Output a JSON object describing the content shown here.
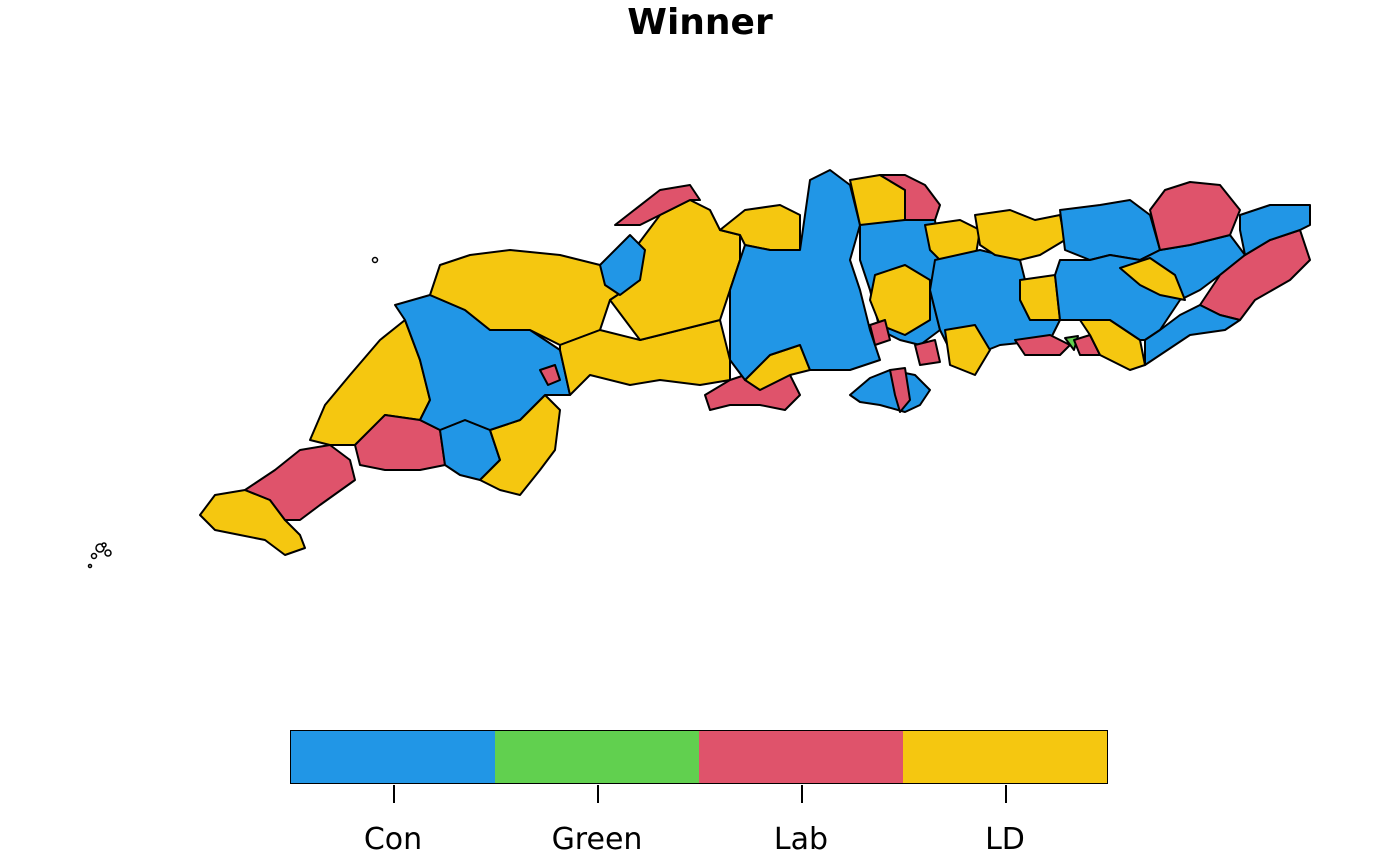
{
  "title": "Winner",
  "colors": {
    "Con": "#2196e6",
    "Green": "#61d04f",
    "Lab": "#df536b",
    "LD": "#f5c710"
  },
  "legend": {
    "categories": [
      {
        "label": "Con",
        "color": "#2196e6"
      },
      {
        "label": "Green",
        "color": "#61d04f"
      },
      {
        "label": "Lab",
        "color": "#df536b"
      },
      {
        "label": "LD",
        "color": "#f5c710"
      }
    ]
  }
}
